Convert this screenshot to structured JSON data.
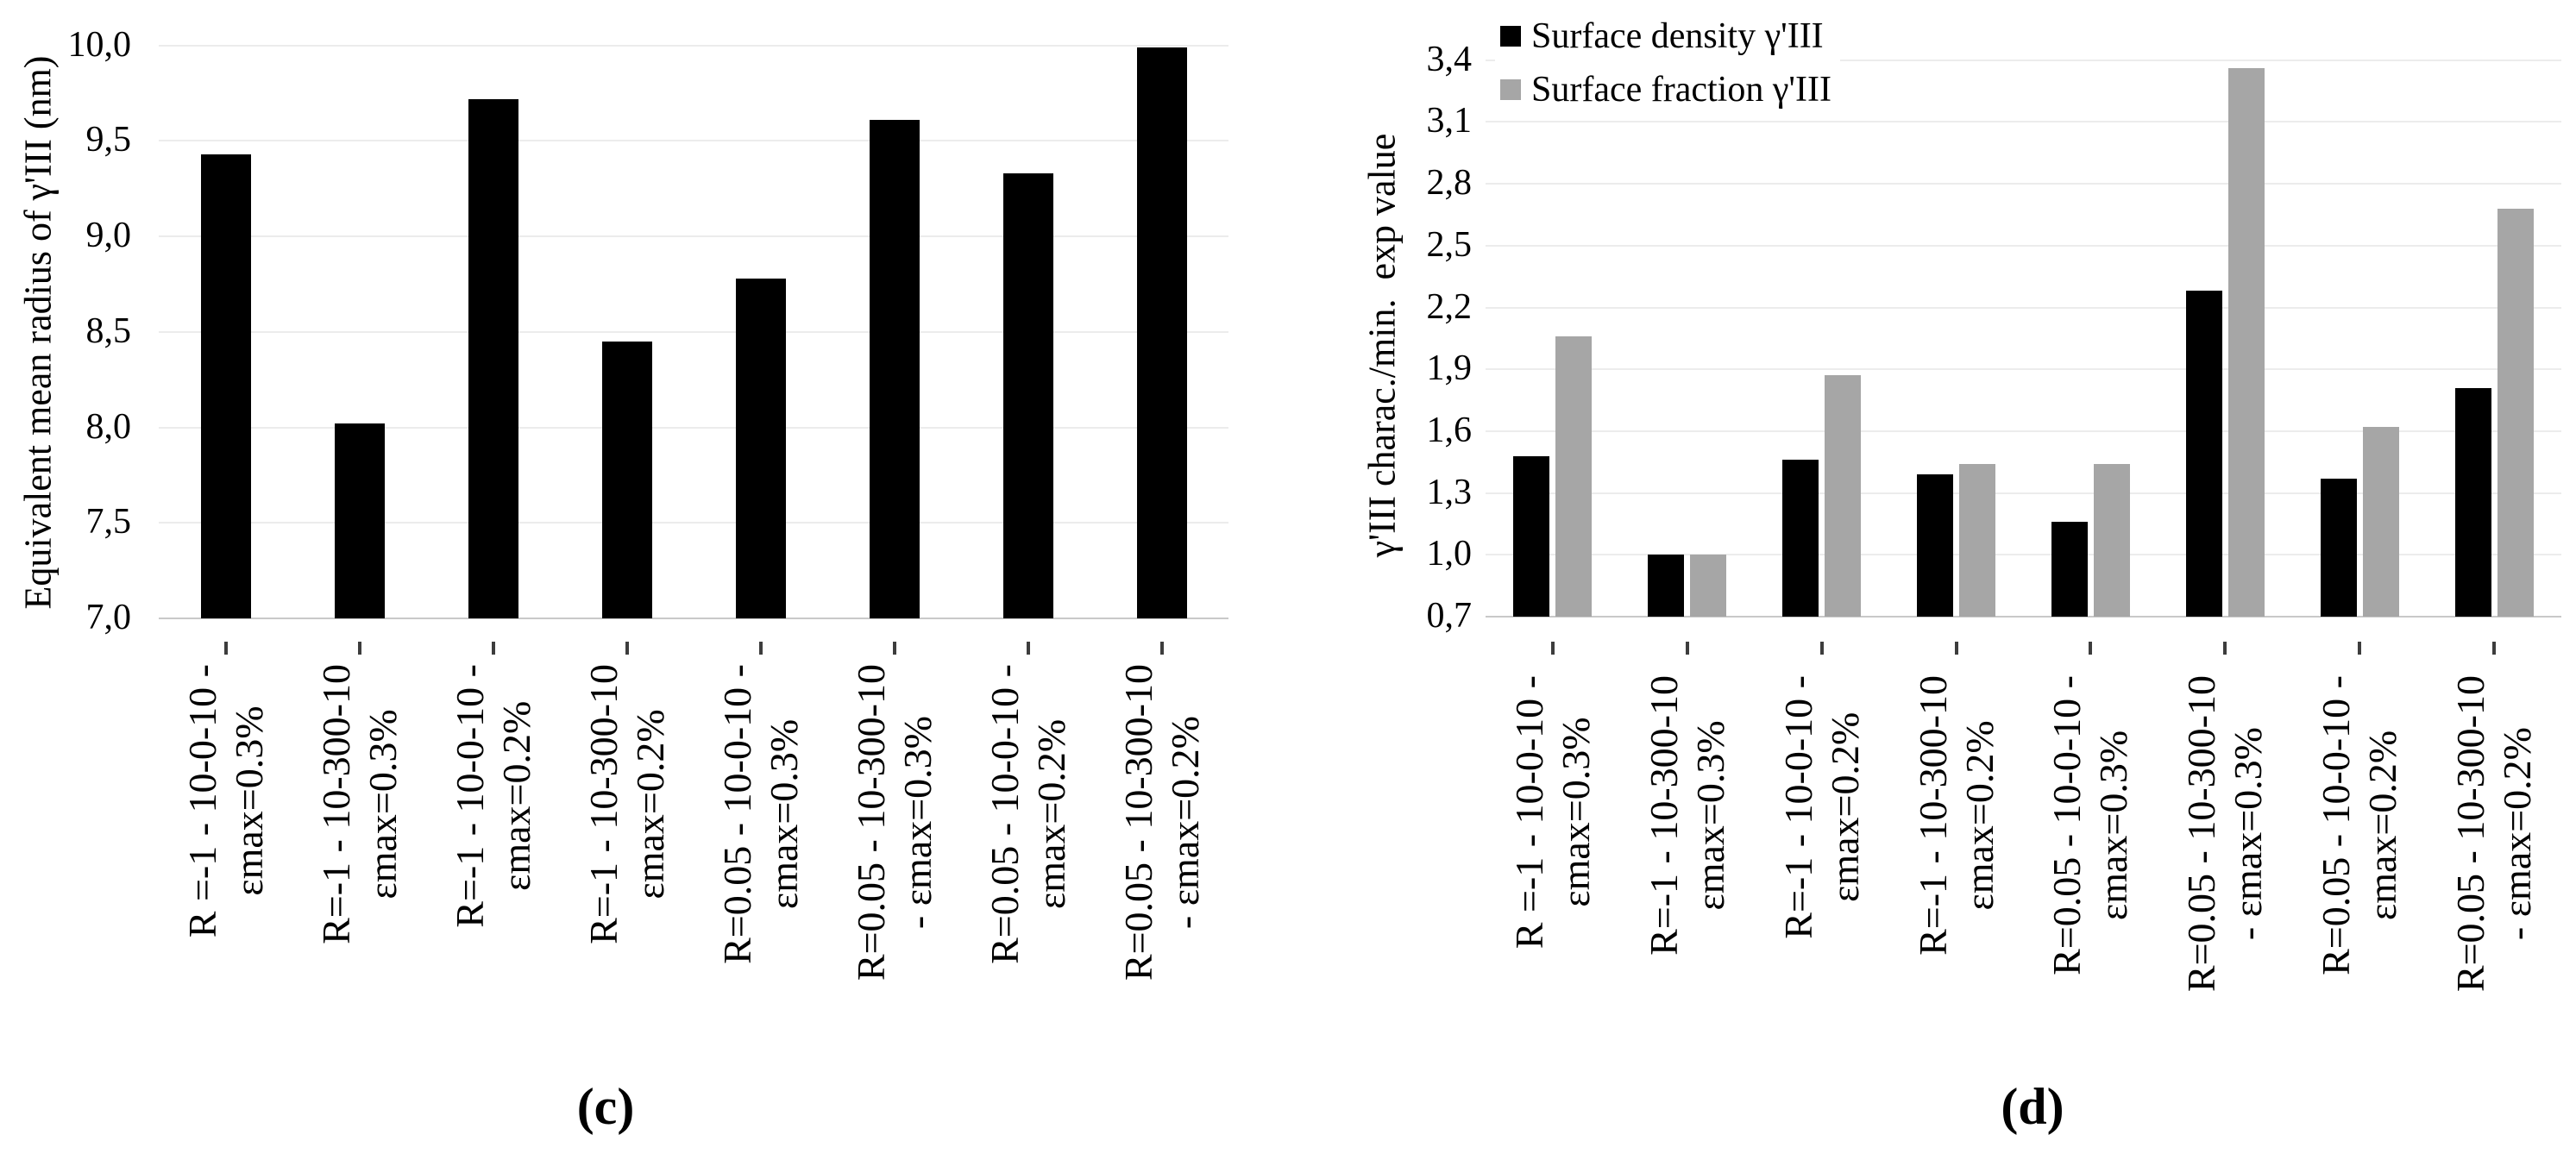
{
  "figure_captions": {
    "left": "(c)",
    "right": "(d)"
  },
  "chart_data": [
    {
      "type": "bar",
      "panel": "(c)",
      "title": "",
      "xlabel": "",
      "ylabel": "Equivalent mean radius of γ'III (nm)",
      "ylim": [
        7.0,
        10.0
      ],
      "ytick_step": 0.5,
      "ytick_labels_top_to_bottom": [
        "10,0",
        "9,5",
        "9,0",
        "8,5",
        "8,0",
        "7,5",
        "7,0"
      ],
      "grid": true,
      "legend_position": "none",
      "categories": [
        [
          "R =-1 - 10-0-10 -",
          "εmax=0.3%"
        ],
        [
          "R=-1 - 10-300-10",
          "εmax=0.3%"
        ],
        [
          "R=-1 - 10-0-10 -",
          "εmax=0.2%"
        ],
        [
          "R=-1 - 10-300-10",
          "εmax=0.2%"
        ],
        [
          "R=0.05 - 10-0-10 -",
          "εmax=0.3%"
        ],
        [
          "R=0.05 - 10-300-10",
          "- εmax=0.3%"
        ],
        [
          "R=0.05 - 10-0-10 -",
          "εmax=0.2%"
        ],
        [
          "R=0.05 - 10-300-10",
          "- εmax=0.2%"
        ]
      ],
      "series": [
        {
          "color": "#000000",
          "values": [
            9.43,
            8.02,
            9.72,
            8.45,
            8.78,
            9.61,
            9.33,
            9.99
          ]
        }
      ]
    },
    {
      "type": "bar",
      "panel": "(d)",
      "title": "",
      "xlabel": "",
      "ylabel": "γ'III charac./min.  exp value",
      "ylim": [
        0.7,
        3.4
      ],
      "ytick_step": 0.3,
      "ytick_labels_top_to_bottom": [
        "3,4",
        "3,1",
        "2,8",
        "2,5",
        "2,2",
        "1,9",
        "1,6",
        "1,3",
        "1,0",
        "0,7"
      ],
      "grid": true,
      "legend_position": "top-left-inside",
      "categories": [
        [
          "R =-1 - 10-0-10 -",
          "εmax=0.3%"
        ],
        [
          "R=-1 - 10-300-10",
          "εmax=0.3%"
        ],
        [
          "R=-1 - 10-0-10 -",
          "εmax=0.2%"
        ],
        [
          "R=-1 - 10-300-10",
          "εmax=0.2%"
        ],
        [
          "R=0.05 - 10-0-10 -",
          "εmax=0.3%"
        ],
        [
          "R=0.05 - 10-300-10",
          "- εmax=0.3%"
        ],
        [
          "R=0.05 - 10-0-10 -",
          "εmax=0.2%"
        ],
        [
          "R=0.05 - 10-300-10",
          "- εmax=0.2%"
        ]
      ],
      "series": [
        {
          "name": "Surface density γ'III",
          "color": "#000000",
          "values": [
            1.48,
            1.0,
            1.46,
            1.39,
            1.16,
            2.28,
            1.37,
            1.81
          ]
        },
        {
          "name": "Surface fraction γ'III",
          "color": "#a6a6a6",
          "values": [
            2.06,
            1.0,
            1.87,
            1.44,
            1.44,
            3.36,
            1.62,
            2.68
          ]
        }
      ]
    }
  ]
}
